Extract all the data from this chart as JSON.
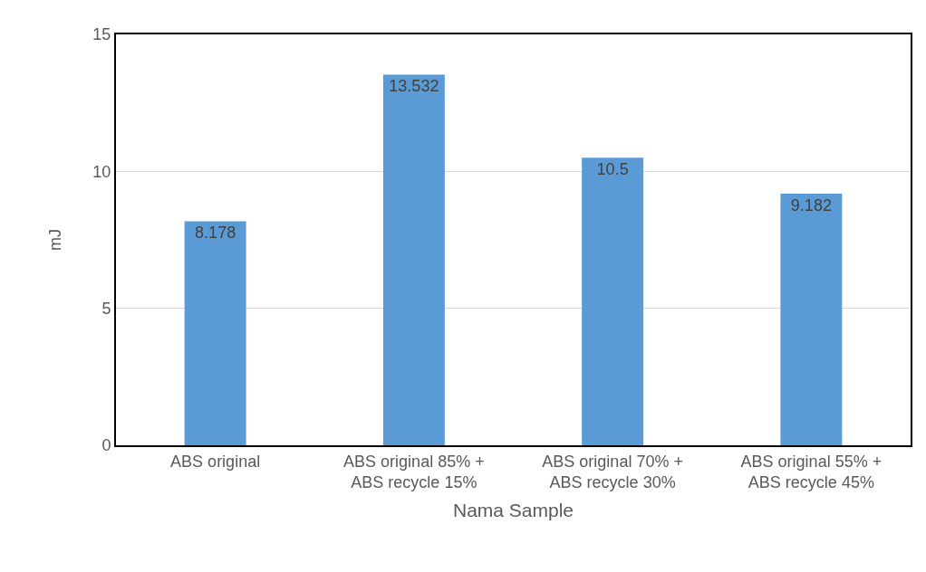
{
  "chart_data": {
    "type": "bar",
    "xlabel": "Nama Sample",
    "ylabel": "mJ",
    "categories": [
      "ABS original",
      "ABS original 85% +\nABS recycle 15%",
      "ABS original 70% +\nABS recycle 30%",
      "ABS original 55% +\nABS recycle 45%"
    ],
    "values": [
      8.178,
      13.532,
      10.5,
      9.182
    ],
    "color": "#5b9bd5",
    "ylim": [
      0,
      15
    ],
    "yticks": [
      0,
      5,
      10,
      15
    ],
    "grid": "y",
    "data_labels": true
  }
}
